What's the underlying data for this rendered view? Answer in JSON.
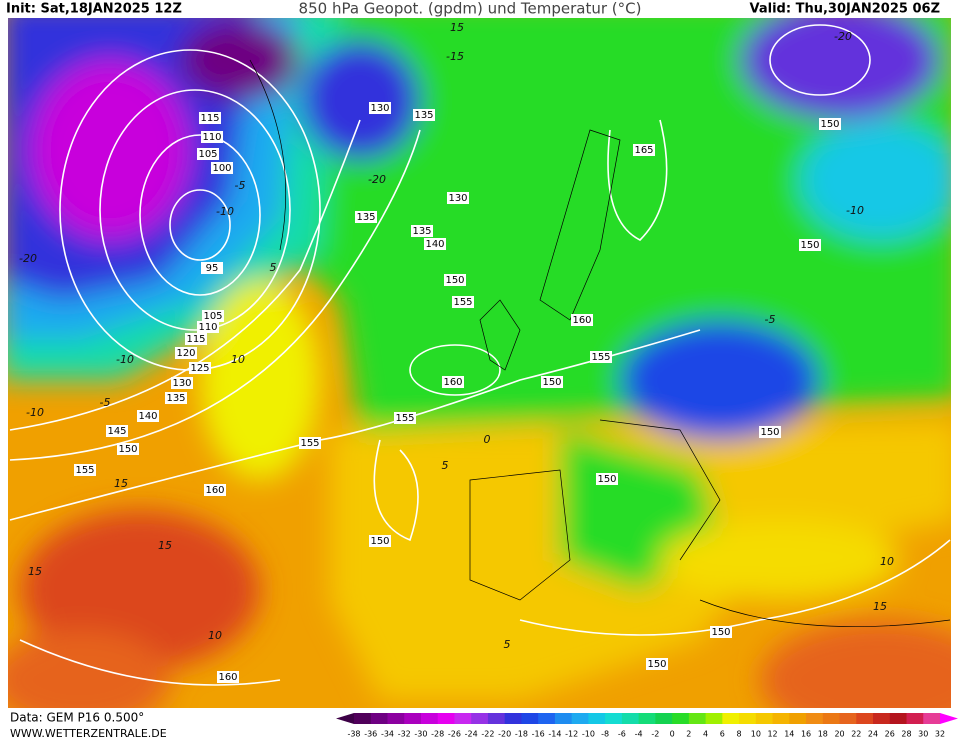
{
  "header": {
    "init": "Init: Sat,18JAN2025 12Z",
    "title": "850 hPa Geopot. (gpdm) und Temperatur (°C)",
    "valid": "Valid: Thu,30JAN2025 06Z"
  },
  "footer": {
    "data": "Data: GEM P16 0.500°",
    "site": "WWW.WETTERZENTRALE.DE"
  },
  "geopotential_labels": [
    115,
    110,
    105,
    100,
    95,
    105,
    110,
    115,
    120,
    125,
    130,
    135,
    140,
    145,
    150,
    155,
    160,
    155,
    150,
    160,
    130,
    135,
    130,
    135,
    135,
    140,
    150,
    155,
    160,
    155,
    150,
    160,
    155,
    165,
    150,
    150,
    150,
    150,
    150,
    150
  ],
  "temperature_labels": [
    -20,
    -20,
    -15,
    -10,
    -5,
    5,
    10,
    -10,
    -5,
    -10,
    15,
    15,
    15,
    10,
    5,
    -10,
    -5,
    0,
    10,
    15,
    5,
    -20,
    15
  ],
  "colorbar": {
    "ticks": [
      -38,
      -36,
      -34,
      -32,
      -30,
      -28,
      -26,
      -24,
      -22,
      -20,
      -18,
      -16,
      -14,
      -12,
      -10,
      -8,
      -6,
      -4,
      -2,
      0,
      2,
      4,
      6,
      8,
      10,
      12,
      14,
      16,
      18,
      20,
      22,
      24,
      26,
      28,
      30,
      32
    ],
    "colors": [
      "#3c0046",
      "#50005a",
      "#6e0082",
      "#8c00a0",
      "#aa00be",
      "#c800dc",
      "#e600f0",
      "#c828f0",
      "#9632e6",
      "#6432dc",
      "#3232dc",
      "#1e46e6",
      "#1e64f0",
      "#1e8cf0",
      "#1eaaf0",
      "#14c8e6",
      "#14dcd2",
      "#14dcaa",
      "#14dc78",
      "#14d250",
      "#28dc28",
      "#64e614",
      "#a0f000",
      "#f0f000",
      "#f5dc00",
      "#f5c800",
      "#f5b400",
      "#f0a000",
      "#f08c14",
      "#eb7814",
      "#e6641e",
      "#dc461e",
      "#c8281e",
      "#b4141e",
      "#d21e50",
      "#e63c96",
      "#ff00ff"
    ]
  }
}
